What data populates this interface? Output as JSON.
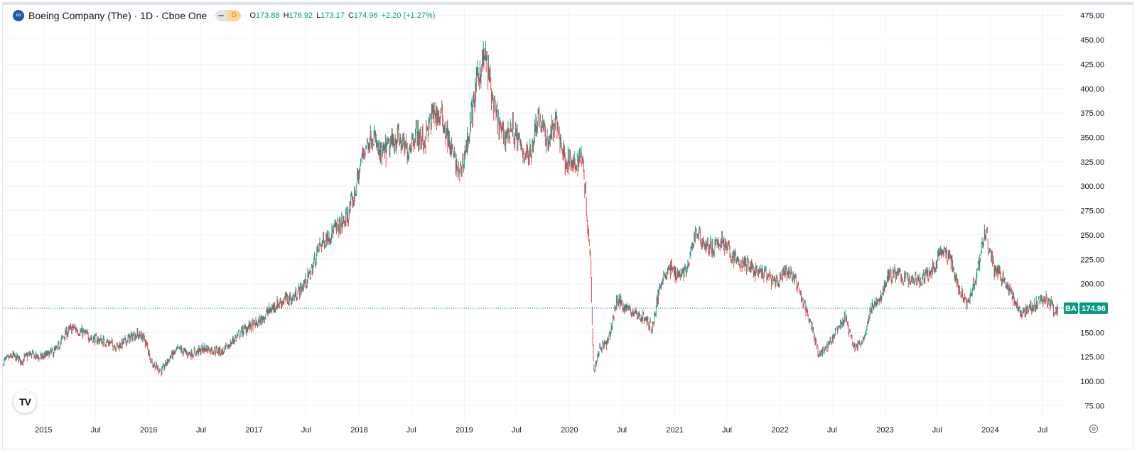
{
  "header": {
    "symbol_title": "Boeing Company (The) · 1D · Cboe One",
    "status_letter": "D",
    "ohlc": [
      {
        "label": "O",
        "value": "173.88"
      },
      {
        "label": "H",
        "value": "176.92"
      },
      {
        "label": "L",
        "value": "173.17"
      },
      {
        "label": "C",
        "value": "174.96"
      }
    ],
    "change": "+2.20 (+1.27%)"
  },
  "price_tag": {
    "symbol": "BA",
    "value": "174.96"
  },
  "colors": {
    "up": "#089981",
    "down": "#f23645",
    "grid": "#f0f3fa",
    "axis_text": "#131722",
    "price_line": "#089981"
  },
  "icons": [
    "symbol-logo-icon",
    "eye-icon",
    "tradingview-logo-icon",
    "settings-gear-icon"
  ],
  "chart_data": {
    "type": "candlestick",
    "x_type": "date",
    "x_range": [
      "2014-08-15",
      "2024-09-25"
    ],
    "ylim": [
      60,
      485
    ],
    "y_ticks": [
      75,
      100,
      125,
      150,
      175,
      200,
      225,
      250,
      275,
      300,
      325,
      350,
      375,
      400,
      425,
      450,
      475
    ],
    "y_tick_labels": [
      "75.00",
      "100.00",
      "125.00",
      "150.00",
      "175.00",
      "200.00",
      "225.00",
      "250.00",
      "275.00",
      "300.00",
      "325.00",
      "350.00",
      "375.00",
      "400.00",
      "425.00",
      "450.00",
      "475.00"
    ],
    "x_ticks": [
      {
        "label": "2015",
        "date": "2015-01-01"
      },
      {
        "label": "Jul",
        "date": "2015-07-01"
      },
      {
        "label": "2016",
        "date": "2016-01-01"
      },
      {
        "label": "Jul",
        "date": "2016-07-01"
      },
      {
        "label": "2017",
        "date": "2017-01-01"
      },
      {
        "label": "Jul",
        "date": "2017-07-01"
      },
      {
        "label": "2018",
        "date": "2018-01-01"
      },
      {
        "label": "Jul",
        "date": "2018-07-01"
      },
      {
        "label": "2019",
        "date": "2019-01-01"
      },
      {
        "label": "Jul",
        "date": "2019-07-01"
      },
      {
        "label": "2020",
        "date": "2020-01-01"
      },
      {
        "label": "Jul",
        "date": "2020-07-01"
      },
      {
        "label": "2021",
        "date": "2021-01-01"
      },
      {
        "label": "Jul",
        "date": "2021-07-01"
      },
      {
        "label": "2022",
        "date": "2022-01-01"
      },
      {
        "label": "Jul",
        "date": "2022-07-01"
      },
      {
        "label": "2023",
        "date": "2023-01-01"
      },
      {
        "label": "Jul",
        "date": "2023-07-01"
      },
      {
        "label": "2024",
        "date": "2024-01-01"
      },
      {
        "label": "Jul",
        "date": "2024-07-01"
      }
    ],
    "close_path": [
      [
        "2014-08-15",
        120
      ],
      [
        "2014-09-15",
        126
      ],
      [
        "2014-10-15",
        121
      ],
      [
        "2014-11-15",
        128
      ],
      [
        "2014-12-15",
        124
      ],
      [
        "2015-01-15",
        127
      ],
      [
        "2015-02-15",
        132
      ],
      [
        "2015-03-15",
        148
      ],
      [
        "2015-04-15",
        155
      ],
      [
        "2015-05-15",
        150
      ],
      [
        "2015-06-15",
        145
      ],
      [
        "2015-07-15",
        142
      ],
      [
        "2015-08-15",
        140
      ],
      [
        "2015-09-15",
        135
      ],
      [
        "2015-10-15",
        142
      ],
      [
        "2015-11-15",
        148
      ],
      [
        "2015-12-15",
        145
      ],
      [
        "2016-01-15",
        118
      ],
      [
        "2016-02-15",
        110
      ],
      [
        "2016-03-15",
        125
      ],
      [
        "2016-04-15",
        133
      ],
      [
        "2016-05-15",
        128
      ],
      [
        "2016-06-15",
        130
      ],
      [
        "2016-07-15",
        134
      ],
      [
        "2016-08-15",
        132
      ],
      [
        "2016-09-15",
        130
      ],
      [
        "2016-10-15",
        140
      ],
      [
        "2016-11-15",
        150
      ],
      [
        "2016-12-15",
        156
      ],
      [
        "2017-01-15",
        160
      ],
      [
        "2017-02-15",
        170
      ],
      [
        "2017-03-15",
        178
      ],
      [
        "2017-04-15",
        183
      ],
      [
        "2017-05-15",
        185
      ],
      [
        "2017-06-15",
        196
      ],
      [
        "2017-07-15",
        210
      ],
      [
        "2017-08-15",
        238
      ],
      [
        "2017-09-15",
        250
      ],
      [
        "2017-10-15",
        257
      ],
      [
        "2017-11-15",
        265
      ],
      [
        "2017-12-15",
        290
      ],
      [
        "2018-01-15",
        335
      ],
      [
        "2018-02-15",
        355
      ],
      [
        "2018-03-15",
        330
      ],
      [
        "2018-04-15",
        340
      ],
      [
        "2018-05-15",
        350
      ],
      [
        "2018-06-15",
        335
      ],
      [
        "2018-07-15",
        355
      ],
      [
        "2018-08-15",
        345
      ],
      [
        "2018-09-15",
        375
      ],
      [
        "2018-10-15",
        370
      ],
      [
        "2018-11-15",
        340
      ],
      [
        "2018-12-15",
        310
      ],
      [
        "2019-01-15",
        350
      ],
      [
        "2019-02-15",
        410
      ],
      [
        "2019-03-15",
        435
      ],
      [
        "2019-04-15",
        378
      ],
      [
        "2019-05-15",
        350
      ],
      [
        "2019-06-15",
        360
      ],
      [
        "2019-07-15",
        340
      ],
      [
        "2019-08-15",
        330
      ],
      [
        "2019-09-15",
        375
      ],
      [
        "2019-10-15",
        345
      ],
      [
        "2019-11-15",
        365
      ],
      [
        "2019-12-15",
        330
      ],
      [
        "2020-01-15",
        320
      ],
      [
        "2020-02-15",
        335
      ],
      [
        "2020-03-15",
        220
      ],
      [
        "2020-03-25",
        110
      ],
      [
        "2020-04-15",
        135
      ],
      [
        "2020-05-15",
        140
      ],
      [
        "2020-06-15",
        185
      ],
      [
        "2020-07-15",
        175
      ],
      [
        "2020-08-15",
        170
      ],
      [
        "2020-09-15",
        165
      ],
      [
        "2020-10-15",
        155
      ],
      [
        "2020-11-15",
        205
      ],
      [
        "2020-12-15",
        215
      ],
      [
        "2021-01-15",
        210
      ],
      [
        "2021-02-15",
        215
      ],
      [
        "2021-03-15",
        255
      ],
      [
        "2021-04-15",
        240
      ],
      [
        "2021-05-15",
        235
      ],
      [
        "2021-06-15",
        245
      ],
      [
        "2021-07-15",
        230
      ],
      [
        "2021-08-15",
        220
      ],
      [
        "2021-09-15",
        220
      ],
      [
        "2021-10-15",
        210
      ],
      [
        "2021-11-15",
        210
      ],
      [
        "2021-12-15",
        200
      ],
      [
        "2022-01-15",
        210
      ],
      [
        "2022-02-15",
        210
      ],
      [
        "2022-03-15",
        185
      ],
      [
        "2022-04-15",
        165
      ],
      [
        "2022-05-15",
        128
      ],
      [
        "2022-06-15",
        135
      ],
      [
        "2022-07-15",
        150
      ],
      [
        "2022-08-15",
        165
      ],
      [
        "2022-09-15",
        135
      ],
      [
        "2022-10-15",
        140
      ],
      [
        "2022-11-15",
        175
      ],
      [
        "2022-12-15",
        185
      ],
      [
        "2023-01-15",
        210
      ],
      [
        "2023-02-15",
        210
      ],
      [
        "2023-03-15",
        205
      ],
      [
        "2023-04-15",
        205
      ],
      [
        "2023-05-15",
        205
      ],
      [
        "2023-06-15",
        215
      ],
      [
        "2023-07-15",
        235
      ],
      [
        "2023-08-15",
        225
      ],
      [
        "2023-09-15",
        195
      ],
      [
        "2023-10-15",
        180
      ],
      [
        "2023-11-15",
        210
      ],
      [
        "2023-12-15",
        255
      ],
      [
        "2024-01-15",
        215
      ],
      [
        "2024-02-15",
        205
      ],
      [
        "2024-03-15",
        190
      ],
      [
        "2024-04-15",
        170
      ],
      [
        "2024-05-15",
        175
      ],
      [
        "2024-06-15",
        180
      ],
      [
        "2024-07-15",
        185
      ],
      [
        "2024-08-15",
        172
      ],
      [
        "2024-08-23",
        174.96
      ]
    ],
    "last": {
      "date": "2024-08-23",
      "open": 173.88,
      "high": 176.92,
      "low": 173.17,
      "close": 174.96
    }
  }
}
